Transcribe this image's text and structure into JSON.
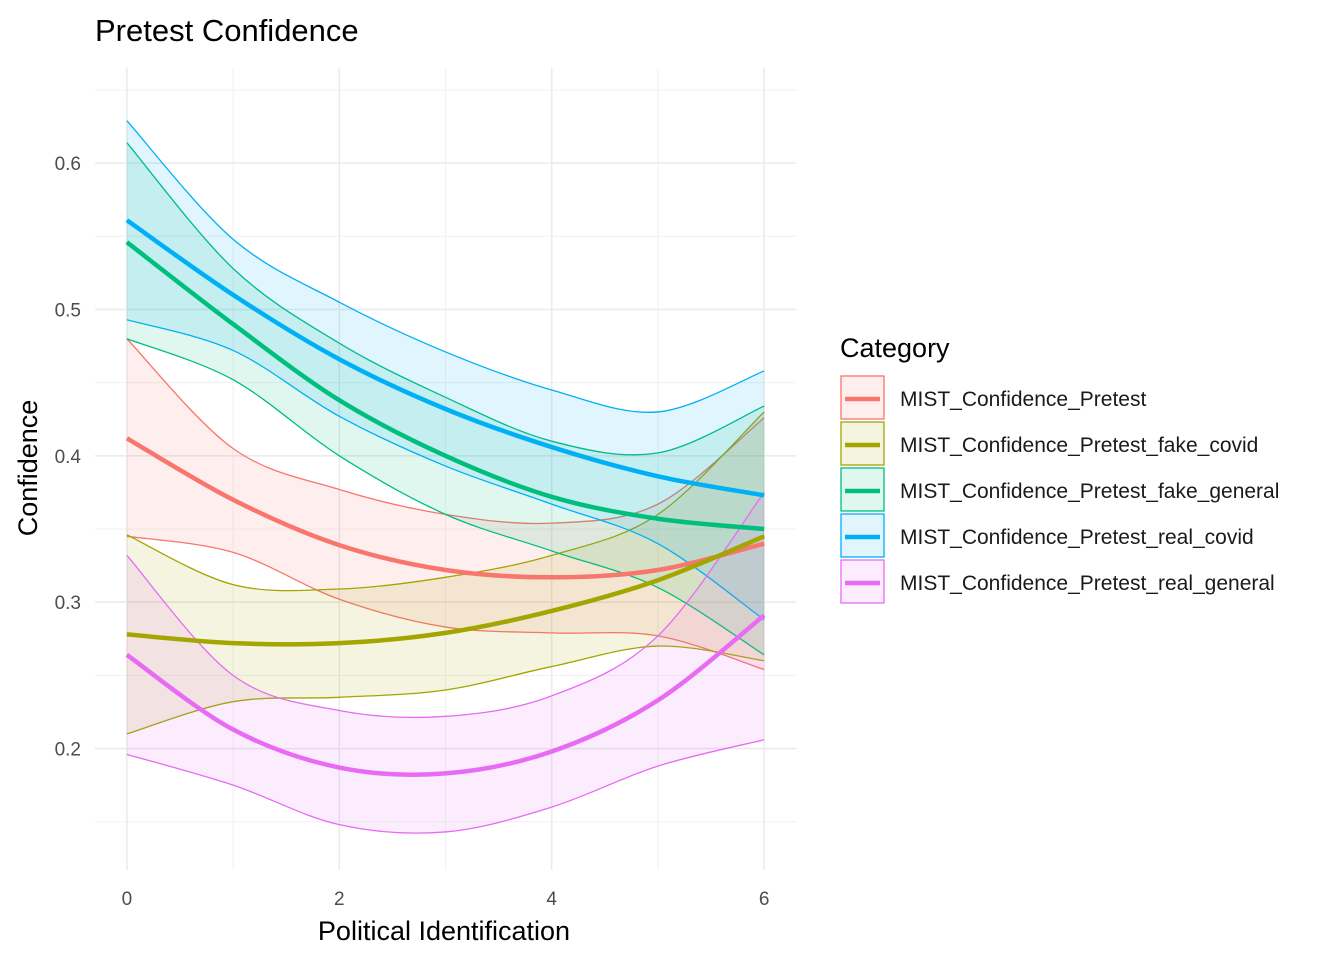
{
  "chart_data": {
    "type": "line",
    "title": "Pretest Confidence",
    "xlabel": "Political Identification",
    "ylabel": "Confidence",
    "xlim": [
      -0.3,
      6.3
    ],
    "ylim": [
      0.117,
      0.665
    ],
    "x_ticks": [
      0,
      2,
      4,
      6
    ],
    "x_tick_labels": [
      "0",
      "2",
      "4",
      "6"
    ],
    "y_ticks": [
      0.2,
      0.3,
      0.4,
      0.5,
      0.6
    ],
    "y_tick_labels": [
      "0.2",
      "0.3",
      "0.4",
      "0.5",
      "0.6"
    ],
    "grid": true,
    "legend": {
      "title": "Category",
      "position": "right"
    },
    "series": [
      {
        "name": "MIST_Confidence_Pretest",
        "color": "#F8766D",
        "x": [
          0,
          1,
          2,
          3,
          4,
          5,
          6
        ],
        "y": [
          0.412,
          0.37,
          0.339,
          0.322,
          0.317,
          0.322,
          0.34
        ],
        "lower": [
          0.345,
          0.334,
          0.302,
          0.283,
          0.279,
          0.277,
          0.254
        ],
        "upper": [
          0.48,
          0.405,
          0.377,
          0.36,
          0.354,
          0.367,
          0.426
        ]
      },
      {
        "name": "MIST_Confidence_Pretest_fake_covid",
        "color": "#A3A500",
        "x": [
          0,
          1,
          2,
          3,
          4,
          5,
          6
        ],
        "y": [
          0.278,
          0.272,
          0.272,
          0.279,
          0.294,
          0.315,
          0.345
        ],
        "lower": [
          0.21,
          0.232,
          0.235,
          0.24,
          0.256,
          0.27,
          0.26
        ],
        "upper": [
          0.346,
          0.312,
          0.309,
          0.317,
          0.332,
          0.36,
          0.43
        ]
      },
      {
        "name": "MIST_Confidence_Pretest_fake_general",
        "color": "#00BF7D",
        "x": [
          0,
          1,
          2,
          3,
          4,
          5,
          6
        ],
        "y": [
          0.546,
          0.49,
          0.438,
          0.4,
          0.372,
          0.357,
          0.35
        ],
        "lower": [
          0.48,
          0.452,
          0.4,
          0.36,
          0.335,
          0.31,
          0.264
        ],
        "upper": [
          0.614,
          0.528,
          0.477,
          0.44,
          0.41,
          0.402,
          0.434
        ]
      },
      {
        "name": "MIST_Confidence_Pretest_real_covid",
        "color": "#00B0F6",
        "x": [
          0,
          1,
          2,
          3,
          4,
          5,
          6
        ],
        "y": [
          0.561,
          0.51,
          0.466,
          0.432,
          0.406,
          0.386,
          0.373
        ],
        "lower": [
          0.493,
          0.472,
          0.427,
          0.393,
          0.367,
          0.34,
          0.288
        ],
        "upper": [
          0.629,
          0.548,
          0.505,
          0.471,
          0.445,
          0.43,
          0.458
        ]
      },
      {
        "name": "MIST_Confidence_Pretest_real_general",
        "color": "#E76BF3",
        "x": [
          0,
          1,
          2,
          3,
          4,
          5,
          6
        ],
        "y": [
          0.264,
          0.213,
          0.187,
          0.183,
          0.198,
          0.233,
          0.291
        ],
        "lower": [
          0.196,
          0.175,
          0.148,
          0.143,
          0.16,
          0.188,
          0.206
        ],
        "upper": [
          0.332,
          0.25,
          0.226,
          0.222,
          0.236,
          0.277,
          0.375
        ]
      }
    ]
  }
}
